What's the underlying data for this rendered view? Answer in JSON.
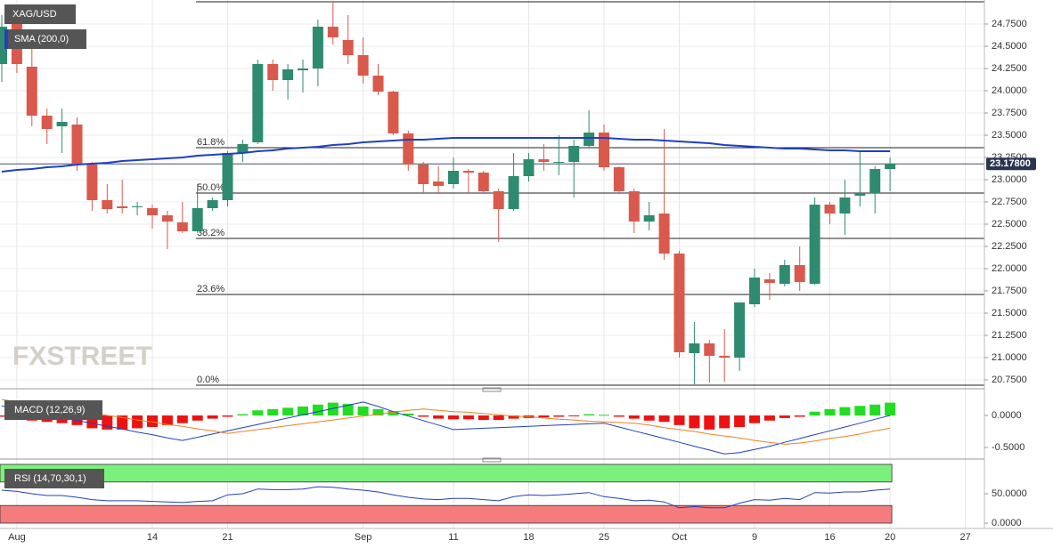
{
  "chart_data": [
    {
      "type": "candlestick",
      "title": "XAG/USD",
      "watermark": "FXSTREET",
      "categories": [
        null,
        "Aug",
        null,
        null,
        null,
        null,
        null,
        null,
        null,
        null,
        "14",
        null,
        null,
        null,
        null,
        "21",
        null,
        null,
        null,
        null,
        null,
        null,
        null,
        null,
        "Sep",
        null,
        null,
        null,
        null,
        null,
        "11",
        null,
        null,
        null,
        null,
        "18",
        null,
        null,
        null,
        null,
        "25",
        null,
        null,
        null,
        null,
        "Oct",
        null,
        null,
        null,
        null,
        "9",
        null,
        null,
        null,
        null,
        "16",
        null,
        null,
        null,
        "20",
        null,
        null,
        null,
        null,
        "27"
      ],
      "open": [
        24.3,
        24.75,
        24.27,
        23.72,
        23.6,
        23.62,
        23.17,
        22.77,
        22.7,
        22.7,
        22.68,
        22.6,
        22.52,
        22.42,
        22.68,
        22.77,
        23.3,
        23.42,
        24.3,
        24.12,
        24.23,
        24.25,
        24.72,
        24.57,
        24.4,
        24.17,
        23.99,
        23.52,
        23.17,
        22.98,
        22.95,
        23.1,
        23.08,
        22.87,
        22.67,
        23.04,
        23.23,
        23.2,
        23.2,
        23.38,
        23.53,
        23.14,
        22.87,
        22.53,
        22.62,
        22.17,
        21.05,
        21.16,
        21.02,
        21.0,
        21.6,
        21.88,
        21.83,
        22.04,
        21.83,
        22.72,
        22.62,
        22.82,
        22.85,
        23.12,
        null,
        null,
        null,
        null,
        null
      ],
      "high": [
        24.85,
        24.8,
        24.5,
        23.8,
        23.8,
        23.7,
        23.2,
        22.95,
        23.0,
        22.75,
        22.72,
        22.65,
        22.75,
        22.95,
        22.8,
        23.32,
        23.45,
        24.35,
        24.35,
        24.3,
        24.35,
        24.8,
        25.0,
        24.85,
        24.6,
        24.3,
        24.0,
        23.55,
        23.2,
        23.15,
        23.25,
        23.12,
        23.1,
        22.9,
        23.3,
        23.3,
        23.4,
        23.5,
        23.45,
        23.78,
        23.62,
        23.15,
        22.9,
        22.75,
        23.57,
        22.2,
        21.4,
        21.2,
        21.32,
        21.62,
        22.0,
        21.95,
        22.1,
        22.25,
        22.8,
        22.75,
        23.0,
        23.33,
        23.15,
        23.25,
        null,
        null,
        null,
        null,
        null
      ],
      "low": [
        24.1,
        24.2,
        23.6,
        23.4,
        23.3,
        23.1,
        22.65,
        22.62,
        22.62,
        22.6,
        22.45,
        22.22,
        22.4,
        22.4,
        22.65,
        22.7,
        23.2,
        23.4,
        24.0,
        23.9,
        23.98,
        24.05,
        24.52,
        24.3,
        24.08,
        23.95,
        23.5,
        23.1,
        22.85,
        22.85,
        22.9,
        22.85,
        22.85,
        22.3,
        22.65,
        22.98,
        23.1,
        23.05,
        22.8,
        23.35,
        23.1,
        22.85,
        22.4,
        22.43,
        22.1,
        21.0,
        20.7,
        20.72,
        20.73,
        20.85,
        21.57,
        21.65,
        21.8,
        21.75,
        21.82,
        22.5,
        22.38,
        22.7,
        22.62,
        22.87,
        null,
        null,
        null,
        null,
        null
      ],
      "close": [
        24.72,
        24.3,
        23.72,
        23.57,
        23.65,
        23.17,
        22.77,
        22.67,
        22.68,
        22.7,
        22.6,
        22.53,
        22.42,
        22.68,
        22.77,
        23.3,
        23.4,
        24.3,
        24.12,
        24.24,
        24.25,
        24.72,
        24.6,
        24.4,
        24.17,
        23.99,
        23.52,
        23.17,
        22.95,
        22.93,
        23.1,
        23.08,
        22.87,
        22.67,
        23.04,
        23.23,
        23.2,
        23.2,
        23.38,
        23.53,
        23.14,
        22.87,
        22.53,
        22.6,
        22.17,
        21.06,
        21.16,
        21.02,
        21.0,
        21.62,
        21.9,
        21.84,
        22.04,
        21.85,
        22.72,
        22.62,
        22.8,
        22.85,
        23.12,
        23.18,
        null,
        null,
        null,
        null,
        null
      ],
      "up_color": "#2e8b6f",
      "down_color": "#d9594c",
      "series": [
        {
          "name": "SMA (200,0)",
          "color": "#1f3fc4",
          "values": [
            23.09,
            23.11,
            23.12,
            23.14,
            23.15,
            23.17,
            23.18,
            23.19,
            23.21,
            23.22,
            23.23,
            23.24,
            23.25,
            23.27,
            23.28,
            23.29,
            23.3,
            23.32,
            23.33,
            23.35,
            23.36,
            23.37,
            23.39,
            23.4,
            23.42,
            23.43,
            23.44,
            23.45,
            23.45,
            23.46,
            23.47,
            23.47,
            23.47,
            23.47,
            23.47,
            23.47,
            23.47,
            23.47,
            23.47,
            23.47,
            23.47,
            23.46,
            23.45,
            23.45,
            23.44,
            23.43,
            23.42,
            23.41,
            23.39,
            23.38,
            23.37,
            23.36,
            23.35,
            23.35,
            23.34,
            23.33,
            23.33,
            23.32,
            23.32,
            23.32,
            null,
            null,
            null,
            null,
            null
          ]
        }
      ],
      "levels": [
        {
          "value": 25.0,
          "label": null
        },
        {
          "value": 23.36,
          "label": "61.8%"
        },
        {
          "value": 22.85,
          "label": "50.0%"
        },
        {
          "value": 22.34,
          "label": "38.2%"
        },
        {
          "value": 21.71,
          "label": "23.6%"
        },
        {
          "value": 20.69,
          "label": "0.0%"
        }
      ],
      "last_price": {
        "value": 23.178,
        "label": "23.17800"
      },
      "ylim": [
        20.67,
        25.0
      ],
      "yticks": [
        {
          "value": 20.75,
          "label": "20.7500"
        },
        {
          "value": 21.0,
          "label": "21.0000"
        },
        {
          "value": 21.25,
          "label": "21.2500"
        },
        {
          "value": 21.5,
          "label": "21.5000"
        },
        {
          "value": 21.75,
          "label": "21.7500"
        },
        {
          "value": 22.0,
          "label": "22.0000"
        },
        {
          "value": 22.25,
          "label": "22.2500"
        },
        {
          "value": 22.5,
          "label": "22.5000"
        },
        {
          "value": 22.75,
          "label": "22.7500"
        },
        {
          "value": 23.0,
          "label": "23.0000"
        },
        {
          "value": 23.25,
          "label": "23.2500"
        },
        {
          "value": 23.5,
          "label": "23.5000"
        },
        {
          "value": 23.75,
          "label": "23.7500"
        },
        {
          "value": 24.0,
          "label": "24.0000"
        },
        {
          "value": 24.25,
          "label": "24.2500"
        },
        {
          "value": 24.5,
          "label": "24.5000"
        },
        {
          "value": 24.75,
          "label": "24.7500"
        }
      ],
      "grid": true
    },
    {
      "type": "macd",
      "title": "MACD (12,26,9)",
      "histogram": [
        -0.02,
        -0.05,
        -0.08,
        -0.1,
        -0.12,
        -0.15,
        -0.2,
        -0.22,
        -0.22,
        -0.2,
        -0.18,
        -0.15,
        -0.12,
        -0.08,
        -0.05,
        -0.02,
        0.02,
        0.08,
        0.1,
        0.12,
        0.14,
        0.17,
        0.2,
        0.18,
        0.14,
        0.1,
        0.07,
        0.03,
        -0.02,
        -0.05,
        -0.06,
        -0.06,
        -0.07,
        -0.07,
        -0.05,
        -0.04,
        -0.03,
        -0.02,
        -0.01,
        0.02,
        0.01,
        -0.02,
        -0.05,
        -0.08,
        -0.1,
        -0.15,
        -0.2,
        -0.22,
        -0.2,
        -0.18,
        -0.12,
        -0.08,
        -0.04,
        -0.02,
        0.06,
        0.1,
        0.13,
        0.15,
        0.17,
        0.2,
        null,
        null,
        null,
        null,
        null
      ],
      "up_color": "#22dd22",
      "down_color": "#ee1111",
      "series": [
        {
          "color": "#2040c0",
          "values": [
            0.15,
            0.1,
            0.06,
            0.01,
            -0.03,
            -0.08,
            -0.12,
            -0.17,
            -0.21,
            -0.26,
            -0.3,
            -0.35,
            -0.39,
            -0.34,
            -0.29,
            -0.24,
            -0.19,
            -0.14,
            -0.09,
            -0.04,
            0.01,
            0.06,
            0.11,
            0.16,
            0.21,
            0.14,
            0.06,
            -0.01,
            -0.08,
            -0.15,
            -0.22,
            -0.21,
            -0.2,
            -0.19,
            -0.18,
            -0.17,
            -0.16,
            -0.15,
            -0.14,
            -0.13,
            -0.12,
            -0.18,
            -0.24,
            -0.3,
            -0.36,
            -0.42,
            -0.48,
            -0.54,
            -0.6,
            -0.58,
            -0.53,
            -0.48,
            -0.42,
            -0.36,
            -0.3,
            -0.24,
            -0.18,
            -0.12,
            -0.06,
            0.0,
            null,
            null,
            null,
            null,
            null
          ]
        },
        {
          "color": "#f08020",
          "values": [
            0.25,
            0.21,
            0.18,
            0.14,
            0.11,
            0.07,
            0.04,
            0.0,
            -0.03,
            -0.07,
            -0.1,
            -0.14,
            -0.17,
            -0.21,
            -0.24,
            -0.28,
            -0.25,
            -0.22,
            -0.19,
            -0.16,
            -0.13,
            -0.1,
            -0.07,
            -0.04,
            -0.01,
            0.02,
            0.05,
            0.08,
            0.1,
            0.08,
            0.06,
            0.05,
            0.03,
            0.01,
            -0.01,
            -0.02,
            -0.04,
            -0.06,
            -0.07,
            -0.09,
            -0.1,
            -0.11,
            -0.12,
            -0.15,
            -0.19,
            -0.22,
            -0.25,
            -0.29,
            -0.32,
            -0.35,
            -0.39,
            -0.42,
            -0.45,
            -0.43,
            -0.4,
            -0.36,
            -0.33,
            -0.29,
            -0.24,
            -0.2,
            null,
            null,
            null,
            null,
            null
          ]
        }
      ],
      "ylim": [
        -0.625,
        0.306
      ],
      "yticks": [
        {
          "value": 0,
          "label": "0.0000"
        },
        {
          "value": -0.5,
          "label": "-0.5000"
        }
      ]
    },
    {
      "type": "rsi",
      "title": "RSI (14,70,30,1)",
      "color": "#2040c0",
      "values": [
        56,
        54,
        50,
        47,
        47,
        44,
        40,
        38,
        38,
        38,
        37,
        36,
        35,
        37,
        38,
        48,
        50,
        58,
        57,
        57,
        58,
        62,
        61,
        58,
        56,
        53,
        48,
        44,
        41,
        40,
        42,
        42,
        40,
        38,
        45,
        48,
        47,
        48,
        50,
        52,
        45,
        42,
        38,
        39,
        36,
        26,
        28,
        26,
        26,
        34,
        40,
        39,
        42,
        40,
        52,
        51,
        53,
        53,
        56,
        58,
        null,
        null,
        null,
        null,
        null
      ],
      "upper": 70,
      "lower": 30,
      "upper_color": "#7cf07c",
      "lower_color": "#f47c7c",
      "ylim": [
        0,
        100
      ],
      "yticks": [
        {
          "value": 0,
          "label": "0.0000"
        },
        {
          "value": 50,
          "label": "50.0000"
        }
      ]
    }
  ]
}
